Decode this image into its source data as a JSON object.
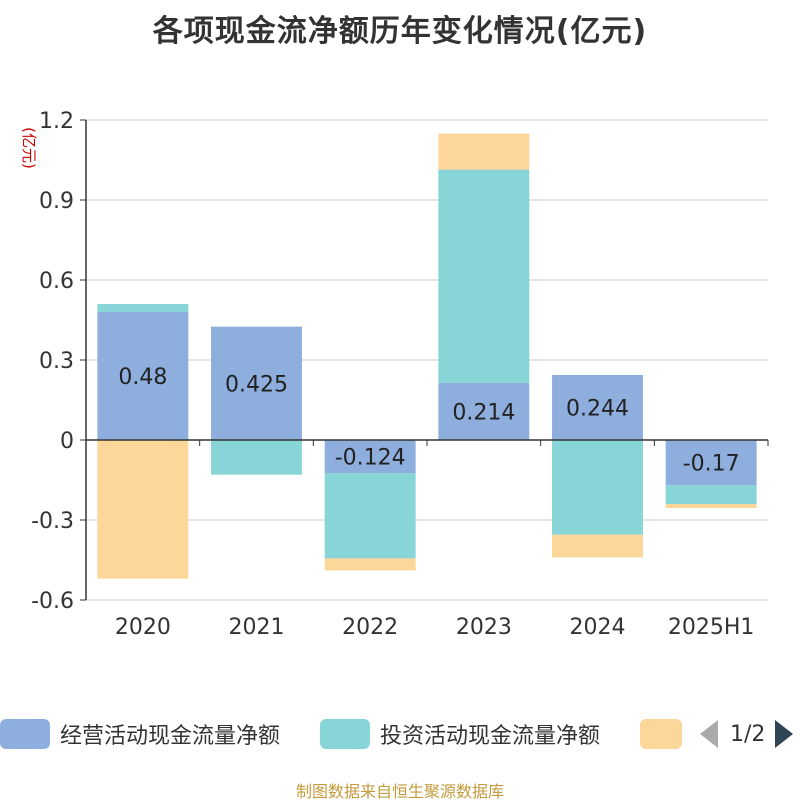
{
  "title": "各项现金流净额历年变化情况(亿元)",
  "source": "制图数据来自恒生聚源数据库",
  "legend": {
    "items": [
      {
        "label": "经营活动现金流量净额",
        "color": "#8eaedd"
      },
      {
        "label": "投资活动现金流量净额",
        "color": "#88d5d8"
      },
      {
        "label": "",
        "color": "#fdd699"
      }
    ],
    "page": "1/2"
  },
  "chart_data": {
    "type": "bar",
    "stacked": true,
    "categories": [
      "2020",
      "2021",
      "2022",
      "2023",
      "2024",
      "2025H1"
    ],
    "ylabel": "(亿元)",
    "ylim": [
      -0.6,
      1.2
    ],
    "yticks": [
      "1.2",
      "0.9",
      "0.6",
      "0.3",
      "0",
      "-0.3",
      "-0.6"
    ],
    "grid": true,
    "series": [
      {
        "name": "经营活动现金流量净额",
        "color": "#8eaedd",
        "values": [
          0.48,
          0.425,
          -0.124,
          0.214,
          0.244,
          -0.17
        ],
        "labels": [
          "0.48",
          "0.425",
          "-0.124",
          "0.214",
          "0.244",
          "-0.17"
        ]
      },
      {
        "name": "投资活动现金流量净额",
        "color": "#88d5d8",
        "values": [
          0.03,
          -0.13,
          -0.32,
          0.8,
          -0.355,
          -0.07
        ]
      },
      {
        "color": "#fdd699",
        "values": [
          -0.52,
          0,
          -0.045,
          0.135,
          -0.085,
          -0.015
        ]
      }
    ]
  }
}
